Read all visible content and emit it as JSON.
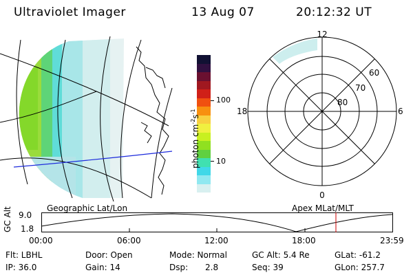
{
  "header": {
    "instrument": "Ultraviolet Imager",
    "date": "13 Aug 07",
    "time": "20:12:32 UT"
  },
  "geo_panel": {
    "caption": "Geographic Lat/Lon"
  },
  "colorbar": {
    "unit": "photon cm",
    "unit_exp1": "-2",
    "unit_s": "s",
    "unit_exp2": "-1",
    "ticks": [
      "100",
      "10"
    ],
    "colors": [
      "#111133",
      "#301040",
      "#6a1030",
      "#a01820",
      "#d02018",
      "#f05010",
      "#f89010",
      "#f8d040",
      "#f0f040",
      "#c8f020",
      "#90e020",
      "#60d040",
      "#40e0b0",
      "#40d8e8",
      "#90e8f0",
      "#d8f0f0"
    ]
  },
  "polar": {
    "hours": [
      "12",
      "18",
      "6",
      "0"
    ],
    "lat_labels": [
      "60",
      "70",
      "80"
    ],
    "caption": "Apex MLat/MLT"
  },
  "altitude_plot": {
    "ylabel": "GC Alt",
    "yticks": [
      "9.0",
      "1.8"
    ],
    "xticks": [
      "00:00",
      "06:00",
      "12:00",
      "18:00",
      "23:59"
    ],
    "marker_color": "#cc0000"
  },
  "status": {
    "row1": {
      "filter": "Flt: LBHL",
      "door": "Door: Open",
      "mode": "Mode: Normal",
      "gc_alt": "GC Alt: 5.4 Re",
      "glat": "GLat: -61.2"
    },
    "row2": {
      "ip": "IP: 36.0",
      "gain": "Gain: 14",
      "dsp_label": "Dsp:",
      "dsp_value": "2.8",
      "seq": "Seq: 39",
      "glon": "GLon: 257.7"
    }
  }
}
